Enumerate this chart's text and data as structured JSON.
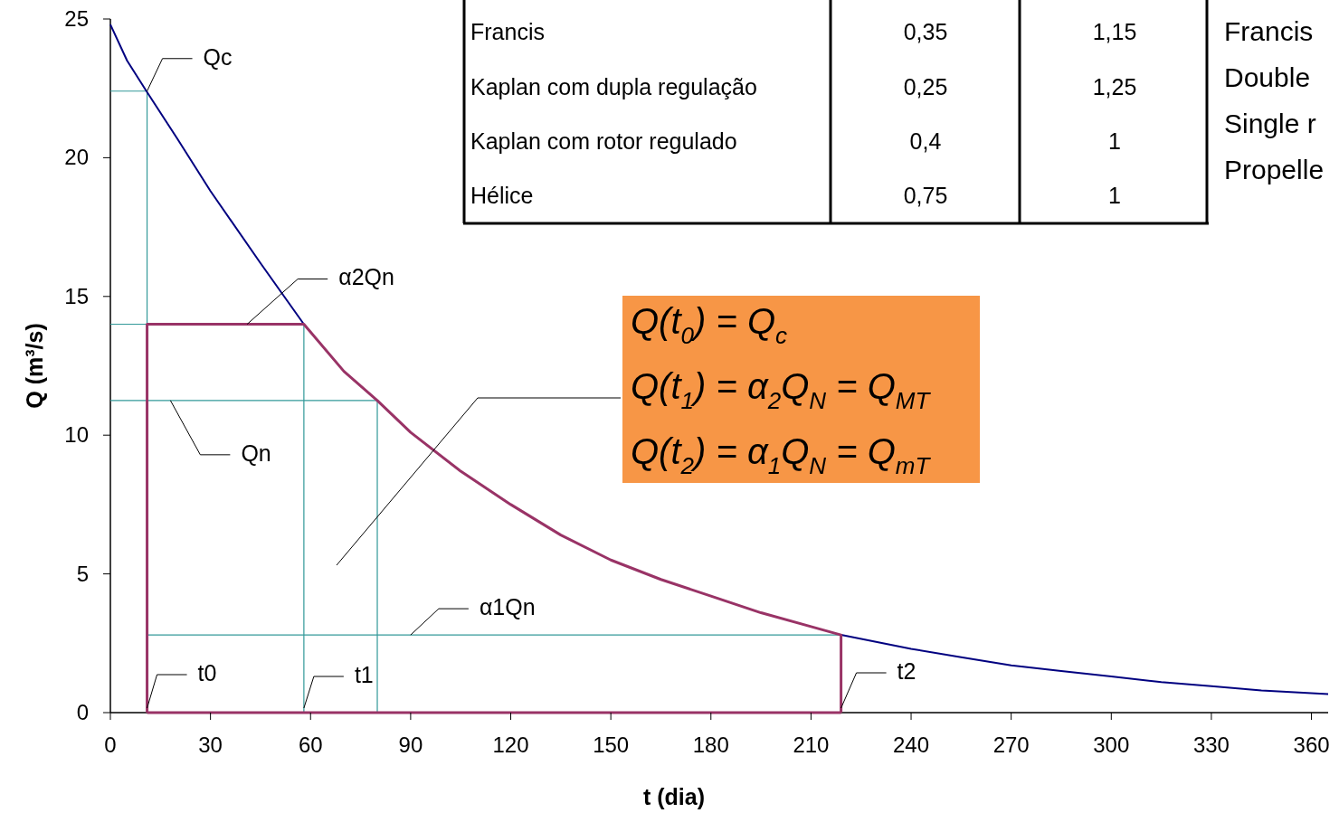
{
  "chart_data": {
    "type": "line",
    "xlabel": "t (dia)",
    "ylabel": "Q (m³/s)",
    "xlim": [
      0,
      365
    ],
    "ylim": [
      0,
      25
    ],
    "xticks": [
      0,
      30,
      60,
      90,
      120,
      150,
      180,
      210,
      240,
      270,
      300,
      330,
      360
    ],
    "yticks": [
      0,
      5,
      10,
      15,
      20,
      25
    ],
    "grid": false,
    "line_style": "solid",
    "series": [
      {
        "color": "#339999",
        "x": [
          0,
          11,
          11
        ],
        "values": [
          22.4,
          22.4,
          14
        ]
      },
      {
        "color": "#339999",
        "x": [
          0,
          58,
          58
        ],
        "values": [
          14,
          14,
          0
        ]
      },
      {
        "color": "#339999",
        "x": [
          0,
          80,
          80
        ],
        "values": [
          11.25,
          11.25,
          0
        ]
      },
      {
        "color": "#339999",
        "x": [
          11,
          219
        ],
        "values": [
          2.8,
          2.8
        ]
      },
      {
        "color": "#000080",
        "x": [
          0,
          5,
          10.8,
          20,
          30,
          45,
          58
        ],
        "values": [
          24.8,
          23.5,
          22.4,
          20.7,
          18.8,
          16.2,
          14
        ]
      },
      {
        "color": "#000080",
        "x": [
          219,
          240,
          255,
          270,
          285,
          300,
          315,
          330,
          345,
          365
        ],
        "values": [
          2.8,
          2.3,
          2.0,
          1.7,
          1.5,
          1.3,
          1.1,
          0.95,
          0.8,
          0.67
        ]
      },
      {
        "color": "#993366",
        "x": [
          11,
          11,
          58,
          70,
          80,
          90,
          105,
          120,
          135,
          150,
          165,
          180,
          195,
          210,
          219,
          219
        ],
        "values": [
          0,
          14,
          14,
          12.3,
          11.25,
          10.1,
          8.7,
          7.5,
          6.4,
          5.5,
          4.8,
          4.2,
          3.6,
          3.1,
          2.8,
          0
        ]
      },
      {
        "color": "#993366",
        "x": [
          11,
          219
        ],
        "values": [
          0,
          0
        ]
      }
    ],
    "annotations": [
      {
        "text": "Qc",
        "x": 11,
        "y": 22.4
      },
      {
        "text": "α2Qn",
        "x": 41,
        "y": 14
      },
      {
        "text": "Qn",
        "x": 18,
        "y": 11.25
      },
      {
        "text": "α1Qn",
        "x": 90,
        "y": 2.8
      },
      {
        "text": "t0",
        "x": 11,
        "y": 0
      },
      {
        "text": "t1",
        "x": 58,
        "y": 0
      },
      {
        "text": "t2",
        "x": 219,
        "y": 0
      },
      "Francis",
      "0,35",
      "1,15",
      "Kaplan com dupla regulação",
      "0,25",
      "1,25",
      "Kaplan com rotor regulado",
      "0,4",
      "1",
      "Hélice",
      "0,75",
      "1",
      "Francis",
      "Double",
      "Single r",
      "Propelle",
      "Q(t$_{0}$) = Q$_{c}$",
      "Q(t$_{1}$) = α$_{2}$Q$_{N}$ = Q$_{MT}$",
      "Q(t$_{2}$) = α$_{1}$Q$_{N}$ = Q$_{mT}$"
    ]
  }
}
